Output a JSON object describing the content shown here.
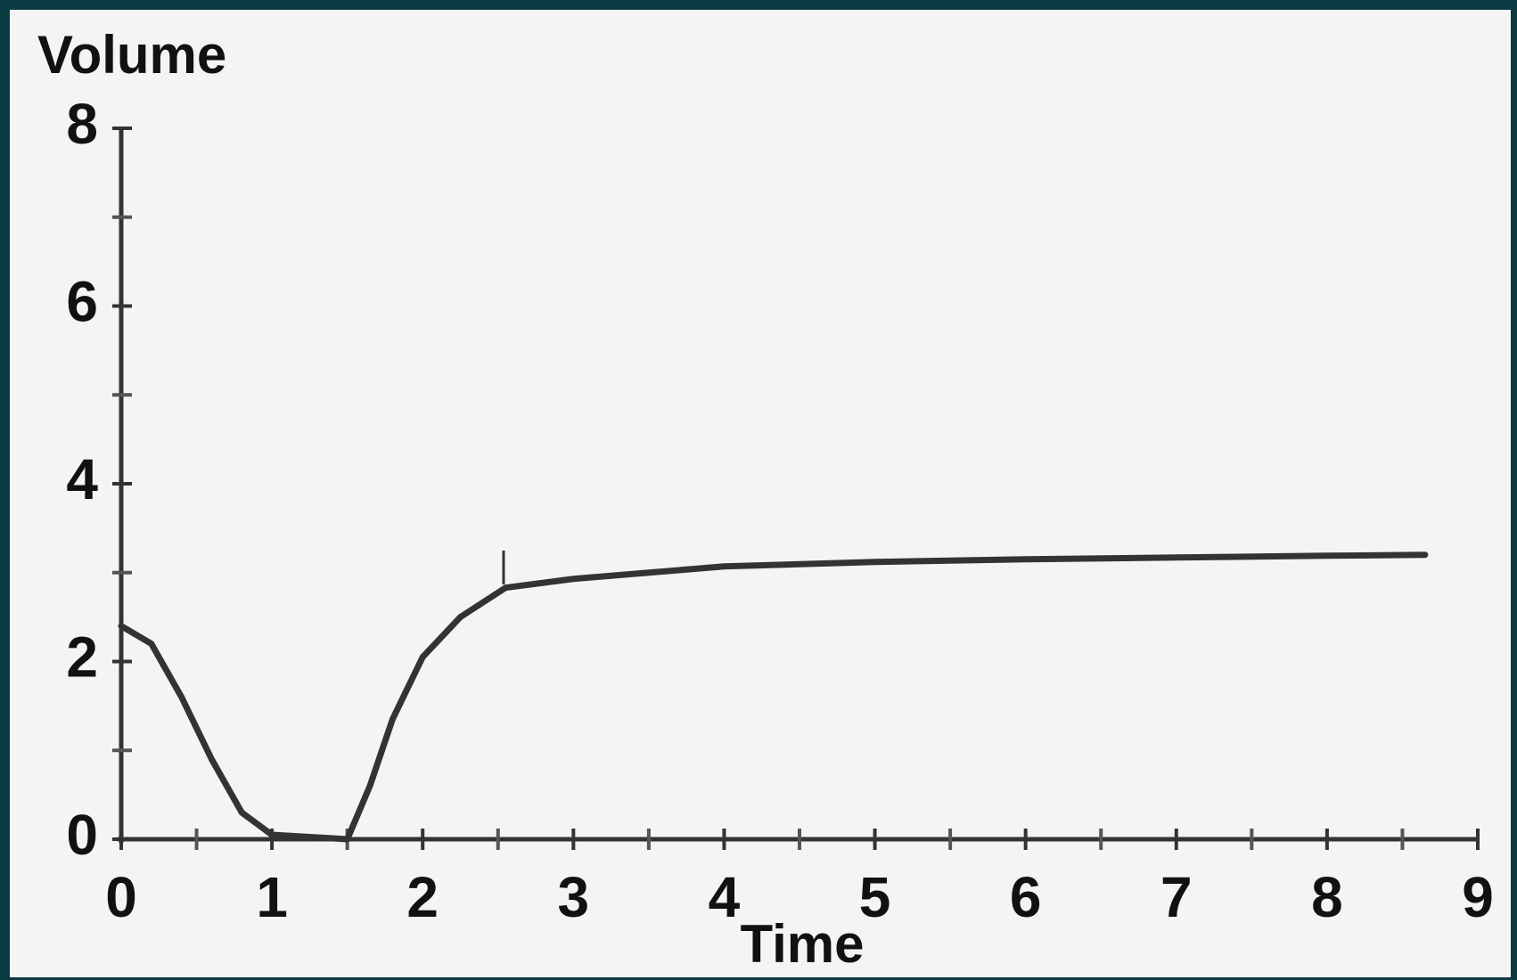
{
  "chart_data": {
    "type": "line",
    "x_label": "Time",
    "y_label": "Volume",
    "x": [
      0,
      0.2,
      0.4,
      0.6,
      0.8,
      1.0,
      1.5,
      1.65,
      1.8,
      2.0,
      2.25,
      2.55,
      3.0,
      3.5,
      4.0,
      5.0,
      6.0,
      7.0,
      8.0,
      8.65
    ],
    "series": [
      {
        "color": "#333333",
        "values": [
          2.4,
          2.2,
          1.6,
          0.9,
          0.3,
          0.05,
          0,
          0.6,
          1.35,
          2.05,
          2.5,
          2.83,
          2.93,
          3.0,
          3.07,
          3.12,
          3.15,
          3.17,
          3.19,
          3.2
        ]
      }
    ],
    "xlim": [
      0,
      9
    ],
    "ylim": [
      0,
      8
    ],
    "xticks": [
      0,
      1,
      2,
      3,
      4,
      5,
      6,
      7,
      8,
      9
    ],
    "yticks": [
      0,
      2,
      4,
      6,
      8
    ],
    "xminor_ticks": [
      0.5,
      1.5,
      2.5,
      3.5,
      4.5,
      5.5,
      6.5,
      7.5,
      8.5
    ],
    "yminor_ticks": [
      1,
      3,
      5,
      7
    ],
    "grid": false
  }
}
